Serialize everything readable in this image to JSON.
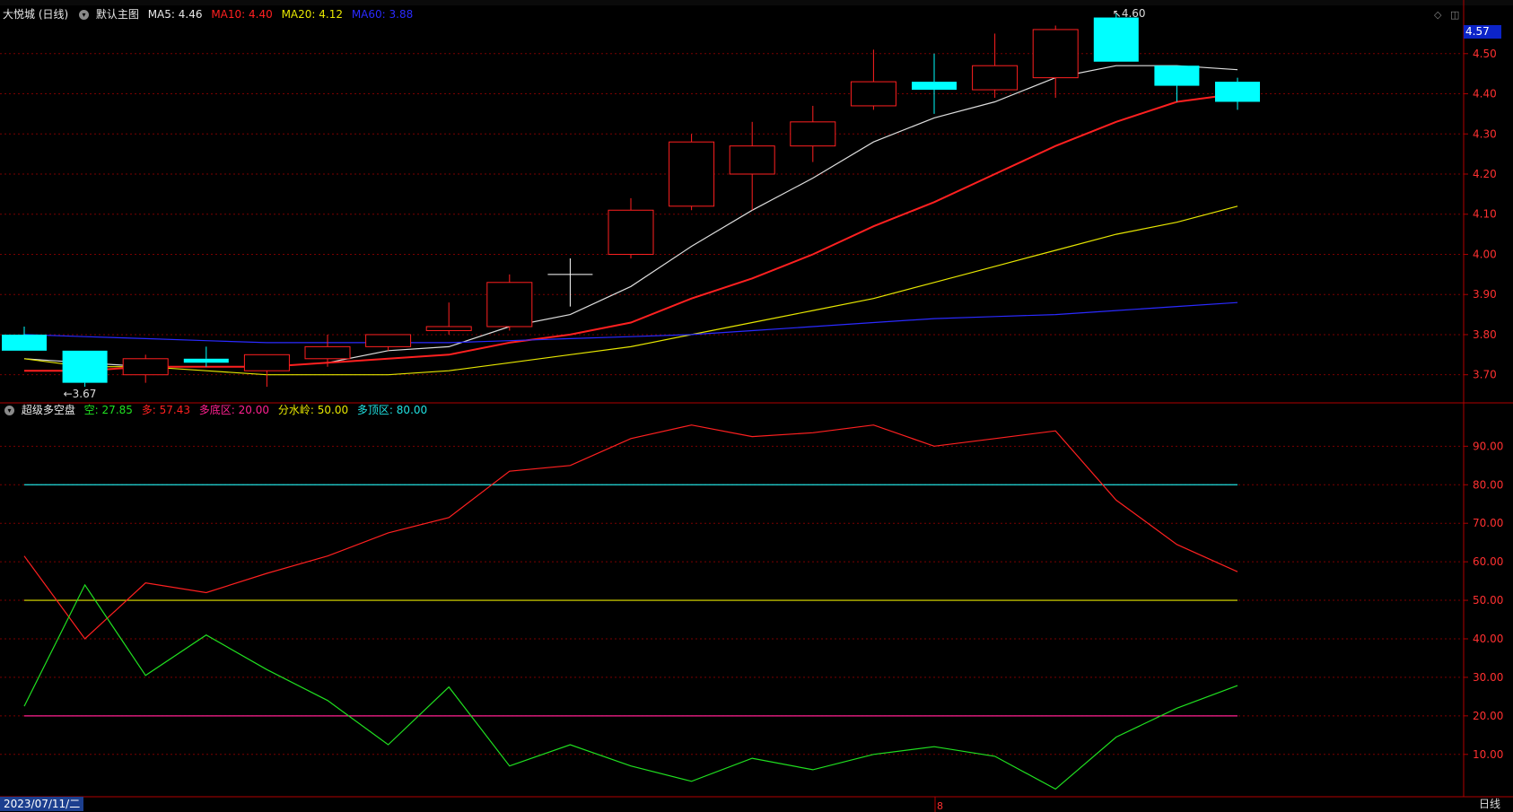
{
  "main_legend": {
    "stock": "大悦城 (日线)",
    "template": "默认主图",
    "ma5": {
      "label": "MA5:",
      "value": "4.46",
      "color": "#ffffff"
    },
    "ma10": {
      "label": "MA10:",
      "value": "4.40",
      "color": "#ff2020"
    },
    "ma20": {
      "label": "MA20:",
      "value": "4.12",
      "color": "#e6e600"
    },
    "ma60": {
      "label": "MA60:",
      "value": "3.88",
      "color": "#2a2aff"
    }
  },
  "indicator_legend": {
    "name": "超级多空盘",
    "kong": {
      "label": "空:",
      "value": "27.85",
      "color": "#20e020"
    },
    "duo": {
      "label": "多:",
      "value": "57.43",
      "color": "#ff2020"
    },
    "bottom_zone": {
      "label": "多底区:",
      "value": "20.00",
      "color": "#ff2090"
    },
    "watershed": {
      "label": "分水岭:",
      "value": "50.00",
      "color": "#e6e600"
    },
    "top_zone": {
      "label": "多顶区:",
      "value": "80.00",
      "color": "#20e0e0"
    }
  },
  "price_badge": "4.57",
  "high_label": "4.60",
  "low_label": "3.67",
  "date": "2023/07/11/二",
  "period": "日线",
  "bottom_marker": "8",
  "colors": {
    "up": "#ff2020",
    "down": "#00ffff",
    "grid": "#7a0000",
    "bg": "#000000"
  },
  "chart_data": [
    {
      "type": "candlestick",
      "ylim": [
        3.63,
        4.58
      ],
      "yticks": [
        "3.70",
        "3.80",
        "3.90",
        "4.00",
        "4.10",
        "4.20",
        "4.30",
        "4.40",
        "4.50"
      ],
      "candles": [
        {
          "o": 3.8,
          "h": 3.82,
          "l": 3.76,
          "c": 3.76
        },
        {
          "o": 3.76,
          "h": 3.76,
          "l": 3.67,
          "c": 3.68
        },
        {
          "o": 3.7,
          "h": 3.75,
          "l": 3.68,
          "c": 3.74
        },
        {
          "o": 3.74,
          "h": 3.77,
          "l": 3.72,
          "c": 3.73
        },
        {
          "o": 3.71,
          "h": 3.75,
          "l": 3.67,
          "c": 3.75
        },
        {
          "o": 3.74,
          "h": 3.8,
          "l": 3.72,
          "c": 3.77
        },
        {
          "o": 3.77,
          "h": 3.8,
          "l": 3.76,
          "c": 3.8
        },
        {
          "o": 3.81,
          "h": 3.88,
          "l": 3.8,
          "c": 3.82
        },
        {
          "o": 3.82,
          "h": 3.95,
          "l": 3.81,
          "c": 3.93
        },
        {
          "o": 3.95,
          "h": 3.99,
          "l": 3.87,
          "c": 3.95
        },
        {
          "o": 4.0,
          "h": 4.14,
          "l": 3.99,
          "c": 4.11
        },
        {
          "o": 4.12,
          "h": 4.3,
          "l": 4.11,
          "c": 4.28
        },
        {
          "o": 4.2,
          "h": 4.33,
          "l": 4.11,
          "c": 4.27
        },
        {
          "o": 4.27,
          "h": 4.37,
          "l": 4.23,
          "c": 4.33
        },
        {
          "o": 4.37,
          "h": 4.51,
          "l": 4.36,
          "c": 4.43
        },
        {
          "o": 4.43,
          "h": 4.5,
          "l": 4.35,
          "c": 4.41
        },
        {
          "o": 4.41,
          "h": 4.55,
          "l": 4.39,
          "c": 4.47
        },
        {
          "o": 4.44,
          "h": 4.57,
          "l": 4.39,
          "c": 4.56
        },
        {
          "o": 4.59,
          "h": 4.6,
          "l": 4.48,
          "c": 4.48
        },
        {
          "o": 4.47,
          "h": 4.47,
          "l": 4.38,
          "c": 4.42
        },
        {
          "o": 4.43,
          "h": 4.44,
          "l": 4.36,
          "c": 4.38
        }
      ],
      "series": [
        {
          "name": "MA5",
          "color": "#dddddd",
          "values": [
            3.74,
            3.73,
            3.72,
            3.72,
            3.72,
            3.73,
            3.76,
            3.77,
            3.82,
            3.85,
            3.92,
            4.02,
            4.11,
            4.19,
            4.28,
            4.34,
            4.38,
            4.44,
            4.47,
            4.47,
            4.46
          ]
        },
        {
          "name": "MA10",
          "color": "#ff2020",
          "values": [
            3.71,
            3.71,
            3.72,
            3.72,
            3.72,
            3.73,
            3.74,
            3.75,
            3.78,
            3.8,
            3.83,
            3.89,
            3.94,
            4.0,
            4.07,
            4.13,
            4.2,
            4.27,
            4.33,
            4.38,
            4.4
          ]
        },
        {
          "name": "MA20",
          "color": "#e6e600",
          "values": [
            3.74,
            3.72,
            3.72,
            3.71,
            3.7,
            3.7,
            3.7,
            3.71,
            3.73,
            3.75,
            3.77,
            3.8,
            3.83,
            3.86,
            3.89,
            3.93,
            3.97,
            4.01,
            4.05,
            4.08,
            4.12
          ]
        },
        {
          "name": "MA60",
          "color": "#2a2aff",
          "values": [
            3.8,
            3.795,
            3.79,
            3.785,
            3.78,
            3.78,
            3.78,
            3.78,
            3.785,
            3.79,
            3.795,
            3.8,
            3.81,
            3.82,
            3.83,
            3.84,
            3.845,
            3.85,
            3.86,
            3.87,
            3.88
          ]
        }
      ]
    },
    {
      "type": "line",
      "ylim": [
        -1,
        98
      ],
      "yticks": [
        "10.00",
        "20.00",
        "30.00",
        "40.00",
        "50.00",
        "60.00",
        "70.00",
        "80.00",
        "90.00"
      ],
      "series": [
        {
          "name": "多",
          "color": "#ff2020",
          "values": [
            61.5,
            40,
            54.5,
            52,
            57,
            61.5,
            67.5,
            71.5,
            83.5,
            85,
            92,
            95.5,
            92.5,
            93.5,
            95.5,
            90,
            92,
            94,
            76,
            64.5,
            57.43
          ]
        },
        {
          "name": "空",
          "color": "#20e020",
          "values": [
            22.5,
            54,
            30.5,
            41,
            32,
            24,
            12.5,
            27.5,
            7,
            12.5,
            7,
            3,
            9,
            6,
            10,
            12,
            9.5,
            1,
            14.5,
            22,
            27.85
          ]
        }
      ],
      "reference_lines": [
        {
          "name": "多顶区",
          "value": 80,
          "color": "#20e0e0"
        },
        {
          "name": "分水岭",
          "value": 50,
          "color": "#e6e600"
        },
        {
          "name": "多底区",
          "value": 20,
          "color": "#ff2090"
        }
      ]
    }
  ]
}
